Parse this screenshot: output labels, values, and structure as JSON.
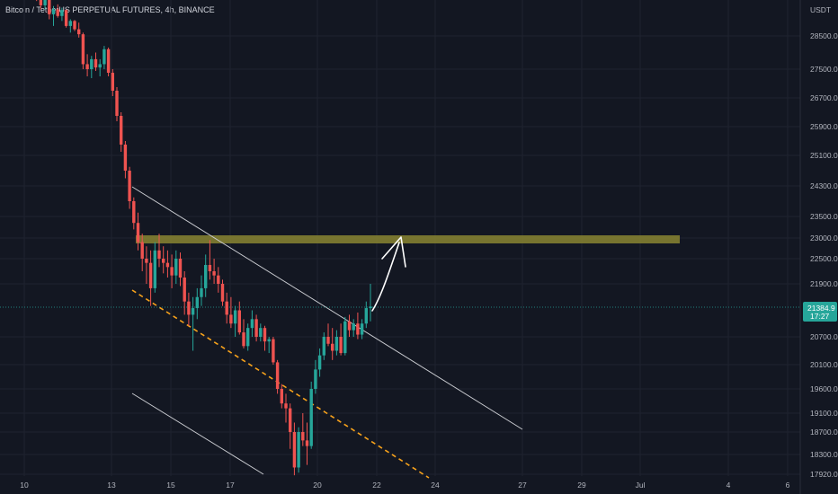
{
  "header": {
    "title": "Bitcoin / TetherUS PERPETUAL FUTURES, 4h, BINANCE"
  },
  "chart_data": {
    "type": "candlestick",
    "symbol": "Bitcoin / TetherUS PERPETUAL FUTURES",
    "interval": "4h",
    "exchange": "BINANCE",
    "currency_label": "USDT",
    "y_ticks": [
      28500,
      27500,
      26700,
      25900,
      25100,
      24300,
      23500,
      23000,
      22500,
      21900,
      20700,
      20100,
      19600,
      19100,
      18700,
      18300,
      17920
    ],
    "y_tick_labels": [
      "28500.0",
      "27500.0",
      "26700.0",
      "25900.0",
      "25100.0",
      "24300.0",
      "23500.0",
      "23000.0",
      "22500.0",
      "21900.0",
      "20700.0",
      "20100.0",
      "19600.0",
      "19100.0",
      "18700.0",
      "18300.0",
      "17920.0"
    ],
    "x_ticks": [
      "10",
      "13",
      "15",
      "17",
      "20",
      "22",
      "24",
      "27",
      "29",
      "Jul",
      "4",
      "6"
    ],
    "last_price": "21384.9",
    "countdown": "17:27",
    "colors": {
      "up": "#26a69a",
      "down": "#ef5350",
      "background": "#131722",
      "zone": "#8a8531",
      "dashed_line": "#f7a21b",
      "trend_line": "#c9cbd0"
    },
    "candles": [
      [
        30000,
        30150,
        29650,
        29820
      ],
      [
        29820,
        30050,
        29550,
        29700
      ],
      [
        29700,
        29900,
        29300,
        29420
      ],
      [
        29420,
        29800,
        29300,
        29650
      ],
      [
        29650,
        29700,
        29000,
        29150
      ],
      [
        29150,
        29400,
        28800,
        29300
      ],
      [
        29300,
        29450,
        29050,
        29100
      ],
      [
        29100,
        29350,
        28950,
        29280
      ],
      [
        29280,
        29300,
        28750,
        28800
      ],
      [
        28800,
        29000,
        28600,
        28950
      ],
      [
        28950,
        28980,
        28650,
        28700
      ],
      [
        28700,
        28900,
        28450,
        28550
      ],
      [
        28550,
        28600,
        27500,
        27650
      ],
      [
        27650,
        27950,
        27300,
        27500
      ],
      [
        27500,
        27900,
        27250,
        27800
      ],
      [
        27800,
        28000,
        27450,
        27550
      ],
      [
        27550,
        27800,
        27300,
        27650
      ],
      [
        27650,
        28200,
        27500,
        28100
      ],
      [
        28100,
        28150,
        27300,
        27400
      ],
      [
        27400,
        27500,
        26750,
        26900
      ],
      [
        26900,
        27000,
        26050,
        26200
      ],
      [
        26200,
        26300,
        25200,
        25400
      ],
      [
        25400,
        25500,
        24500,
        24700
      ],
      [
        24700,
        24800,
        23700,
        23900
      ],
      [
        23900,
        24000,
        23200,
        23350
      ],
      [
        23350,
        23600,
        22700,
        22900
      ],
      [
        22900,
        23100,
        22200,
        22500
      ],
      [
        22500,
        22800,
        21900,
        22400
      ],
      [
        22400,
        22700,
        21400,
        21800
      ],
      [
        21800,
        22900,
        21700,
        22700
      ],
      [
        22700,
        23100,
        22300,
        22500
      ],
      [
        22500,
        22800,
        22150,
        22400
      ],
      [
        22400,
        22700,
        22050,
        22300
      ],
      [
        22300,
        22600,
        21800,
        22100
      ],
      [
        22100,
        22700,
        21900,
        22500
      ],
      [
        22500,
        22650,
        21850,
        22050
      ],
      [
        22050,
        22200,
        21200,
        21500
      ],
      [
        21500,
        21700,
        20950,
        21200
      ],
      [
        21200,
        21600,
        20400,
        21350
      ],
      [
        21350,
        21800,
        21100,
        21600
      ],
      [
        21600,
        22100,
        21400,
        21800
      ],
      [
        21800,
        22600,
        21600,
        22350
      ],
      [
        22350,
        22950,
        22000,
        22200
      ],
      [
        22200,
        22500,
        21900,
        22100
      ],
      [
        22100,
        22300,
        21700,
        21900
      ],
      [
        21900,
        22000,
        21400,
        21500
      ],
      [
        21500,
        21700,
        21000,
        21200
      ],
      [
        21200,
        21600,
        20900,
        21000
      ],
      [
        21000,
        21400,
        20700,
        21300
      ],
      [
        21300,
        21500,
        20750,
        20800
      ],
      [
        20800,
        21100,
        20450,
        20500
      ],
      [
        20500,
        21000,
        20400,
        20900
      ],
      [
        20900,
        21300,
        20700,
        21100
      ],
      [
        21100,
        21200,
        20600,
        20700
      ],
      [
        20700,
        21000,
        20600,
        20900
      ],
      [
        20900,
        20950,
        20400,
        20600
      ],
      [
        20600,
        20700,
        20350,
        20650
      ],
      [
        20650,
        20700,
        20100,
        20150
      ],
      [
        20150,
        20200,
        19500,
        19600
      ],
      [
        19600,
        19700,
        19200,
        19300
      ],
      [
        19300,
        19500,
        18900,
        19200
      ],
      [
        19200,
        19300,
        18400,
        18700
      ],
      [
        18700,
        18900,
        17900,
        18050
      ],
      [
        18050,
        18800,
        17950,
        18700
      ],
      [
        18700,
        19100,
        18450,
        18550
      ],
      [
        18550,
        18900,
        18100,
        18450
      ],
      [
        18450,
        19750,
        18400,
        19600
      ],
      [
        19600,
        20200,
        19500,
        20000
      ],
      [
        20000,
        20450,
        19850,
        20300
      ],
      [
        20300,
        20800,
        20200,
        20700
      ],
      [
        20700,
        21000,
        20500,
        20550
      ],
      [
        20550,
        20900,
        20200,
        20400
      ],
      [
        20400,
        20850,
        20300,
        20700
      ],
      [
        20700,
        21000,
        20300,
        20350
      ],
      [
        20350,
        21150,
        20300,
        21050
      ],
      [
        21050,
        21200,
        20700,
        20850
      ],
      [
        20850,
        21100,
        20700,
        21000
      ],
      [
        21000,
        21250,
        20650,
        20750
      ],
      [
        20750,
        21100,
        20650,
        21000
      ],
      [
        21000,
        21500,
        20900,
        21350
      ],
      [
        21350,
        21900,
        21050,
        21385
      ]
    ]
  }
}
